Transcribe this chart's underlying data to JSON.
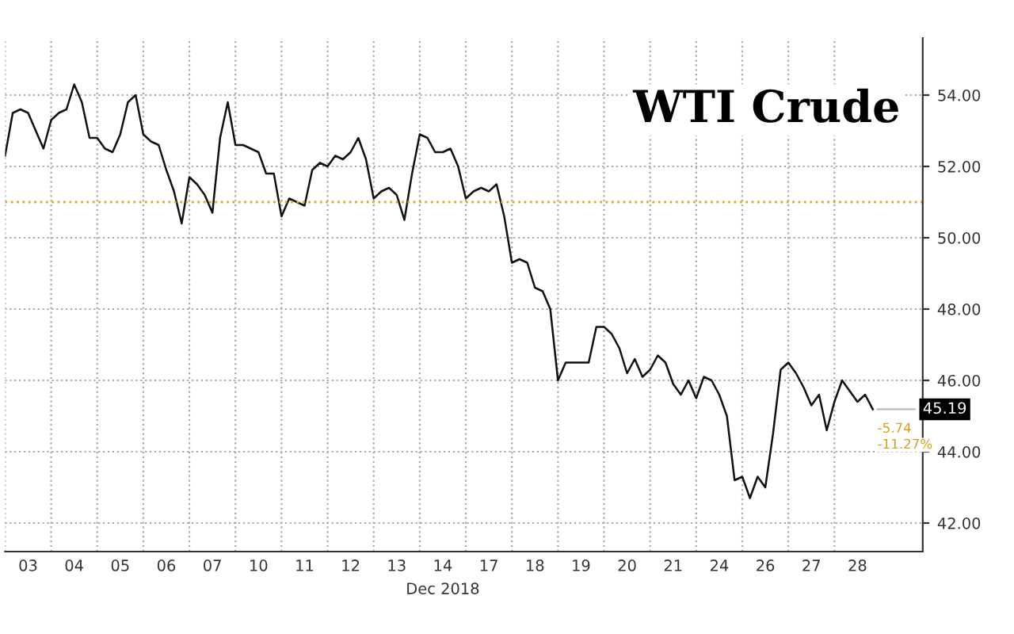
{
  "chart_data": {
    "type": "line",
    "title": "WTI Crude",
    "xlabel": "Dec 2018",
    "categories": [
      null,
      null,
      null,
      "03",
      null,
      null,
      null,
      null,
      null,
      "04",
      null,
      null,
      null,
      null,
      null,
      "05",
      null,
      null,
      null,
      null,
      null,
      "06",
      null,
      null,
      null,
      null,
      null,
      "07",
      null,
      null,
      null,
      null,
      null,
      "10",
      null,
      null,
      null,
      null,
      null,
      "11",
      null,
      null,
      null,
      null,
      null,
      "12",
      null,
      null,
      null,
      null,
      null,
      "13",
      null,
      null,
      null,
      null,
      null,
      "14",
      null,
      null,
      null,
      null,
      null,
      "17",
      null,
      null,
      null,
      null,
      null,
      "18",
      null,
      null,
      null,
      null,
      null,
      "19",
      null,
      null,
      null,
      null,
      null,
      "20",
      null,
      null,
      null,
      null,
      null,
      "21",
      null,
      null,
      null,
      null,
      null,
      "24",
      null,
      null,
      null,
      null,
      null,
      "26",
      null,
      null,
      null,
      null,
      null,
      "27",
      null,
      null,
      null,
      null,
      null,
      "28",
      null,
      null,
      null,
      null,
      null,
      null,
      null,
      null
    ],
    "series": [
      {
        "color": "#111111",
        "values": [
          52.3,
          53.5,
          53.6,
          53.5,
          53.0,
          52.5,
          53.3,
          53.5,
          53.6,
          54.3,
          53.8,
          52.8,
          52.8,
          52.5,
          52.4,
          52.9,
          53.8,
          54.0,
          52.9,
          52.7,
          52.6,
          51.9,
          51.3,
          50.4,
          51.7,
          51.5,
          51.2,
          50.7,
          52.8,
          53.8,
          52.6,
          52.6,
          52.5,
          52.4,
          51.8,
          51.8,
          50.6,
          51.1,
          51.0,
          50.9,
          51.9,
          52.1,
          52.0,
          52.3,
          52.2,
          52.4,
          52.8,
          52.2,
          51.1,
          51.3,
          51.4,
          51.2,
          50.5,
          51.8,
          52.9,
          52.8,
          52.4,
          52.4,
          52.5,
          52.0,
          51.1,
          51.3,
          51.4,
          51.3,
          51.5,
          50.6,
          49.3,
          49.4,
          49.3,
          48.6,
          48.5,
          48.0,
          46.0,
          46.5,
          46.5,
          46.5,
          46.5,
          47.5,
          47.5,
          47.3,
          46.9,
          46.2,
          46.6,
          46.1,
          46.3,
          46.7,
          46.5,
          45.9,
          45.6,
          46.0,
          45.5,
          46.1,
          46.0,
          45.6,
          45.0,
          43.2,
          43.3,
          42.7,
          43.3,
          43.0,
          44.5,
          46.3,
          46.5,
          46.2,
          45.8,
          45.3,
          45.6,
          44.6,
          45.4,
          46.0,
          45.7,
          45.4,
          45.6,
          45.19,
          null,
          null,
          null,
          null,
          null,
          null
        ]
      }
    ],
    "ylim": [
      41.2,
      55.6
    ],
    "yticks": [
      {
        "value": 42,
        "label": "42.00"
      },
      {
        "value": 44,
        "label": "44.00"
      },
      {
        "value": 46,
        "label": "46.00"
      },
      {
        "value": 48,
        "label": "48.00"
      },
      {
        "value": 50,
        "label": "50.00"
      },
      {
        "value": 52,
        "label": "52.00"
      },
      {
        "value": 54,
        "label": "54.00"
      }
    ],
    "ref_lines": [
      {
        "axis": "y",
        "value": 51.0,
        "color": "#e0a830",
        "line_style": "dotted"
      }
    ],
    "annotations": [
      {
        "text": "45.19",
        "y": 45.19
      },
      "-5.74",
      "-11.27%"
    ],
    "grid": true,
    "legend": false,
    "marker": "none",
    "line_style": "solid"
  }
}
